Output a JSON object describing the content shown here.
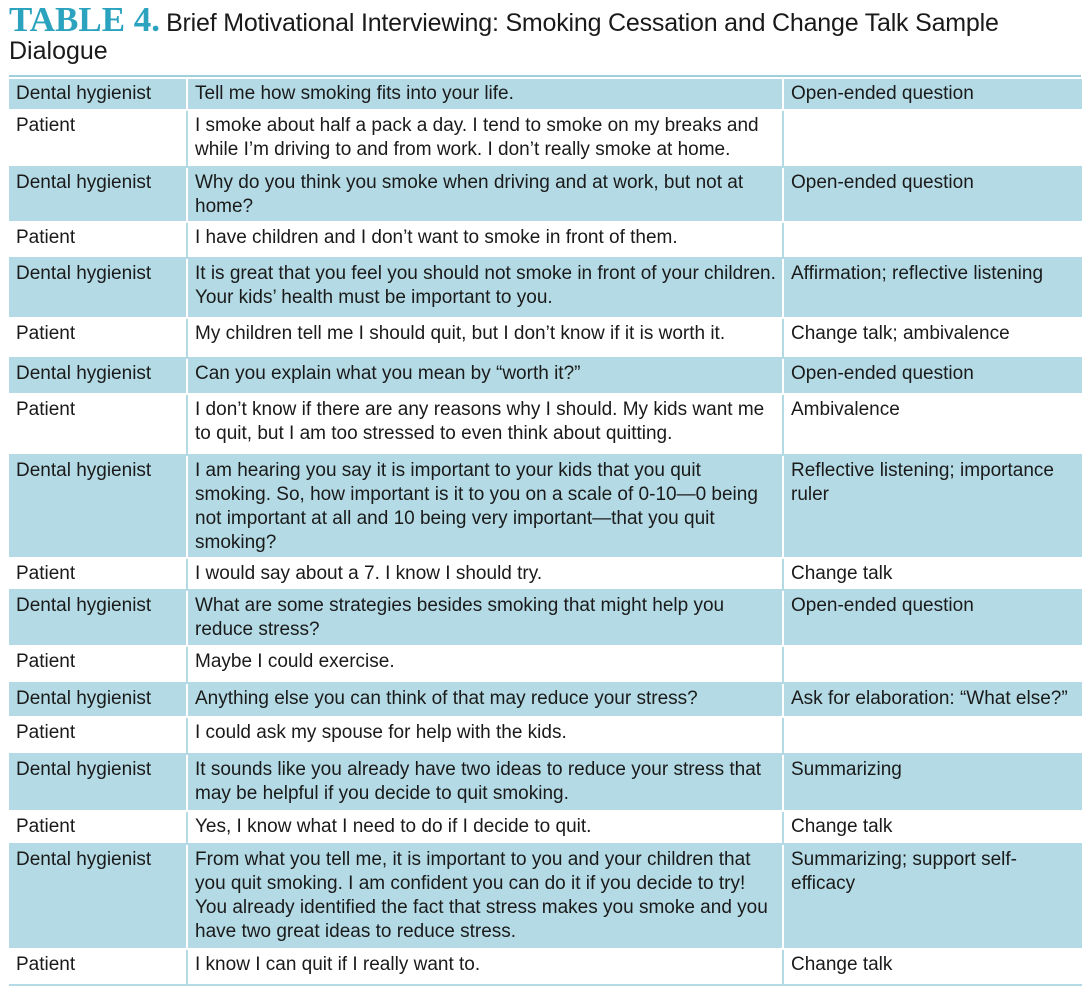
{
  "header": {
    "label": "TABLE 4.",
    "title_line1": "Brief Motivational Interviewing: Smoking Cessation and Change Talk Sample",
    "title_line2": "Dialogue"
  },
  "colors": {
    "label_accent": "#2ba3bf",
    "row_shade": "#b4dbe5"
  },
  "rows": [
    {
      "speaker": "Dental hygienist",
      "dialogue": "Tell me how smoking fits into your life.",
      "technique": "Open-ended question"
    },
    {
      "speaker": "Patient",
      "dialogue": "I smoke about half a pack a day. I tend to smoke on my breaks and while I’m driving to and from work. I don’t really smoke at home.",
      "technique": ""
    },
    {
      "speaker": "Dental hygienist",
      "dialogue": "Why do you think you smoke when driving and at work, but not at home?",
      "technique": "Open-ended question"
    },
    {
      "speaker": "Patient",
      "dialogue": "I have children and I don’t want to smoke in front of them.",
      "technique": ""
    },
    {
      "speaker": "Dental hygienist",
      "dialogue": "It is great that you feel you should not smoke in front of your children. Your kids’ health must be important to you.",
      "technique": "Affirmation; reflective listening"
    },
    {
      "speaker": "Patient",
      "dialogue": "My children tell me I should quit, but I don’t know if it is worth it.",
      "technique": "Change talk; ambivalence"
    },
    {
      "speaker": "Dental hygienist",
      "dialogue": "Can you explain what you mean by “worth it?”",
      "technique": "Open-ended question"
    },
    {
      "speaker": "Patient",
      "dialogue": "I don’t know if there are any reasons why I should. My kids want me to quit, but I am too stressed to even think about quitting.",
      "technique": "Ambivalence"
    },
    {
      "speaker": "Dental hygienist",
      "dialogue": "I am hearing you say it is important to your kids that you quit smoking. So, how important is it to you on a scale of 0-10—0 being not important at all and 10 being very important—that you quit smoking?",
      "technique": "Reflective listening; importance ruler"
    },
    {
      "speaker": "Patient",
      "dialogue": "I would say about a 7. I know I should try.",
      "technique": "Change talk"
    },
    {
      "speaker": "Dental hygienist",
      "dialogue": "What are some strategies besides smoking that might help you reduce stress?",
      "technique": "Open-ended question"
    },
    {
      "speaker": "Patient",
      "dialogue": "Maybe I could exercise.",
      "technique": ""
    },
    {
      "speaker": "Dental hygienist",
      "dialogue": "Anything else you can think of that may reduce your stress?",
      "technique": "Ask for elaboration: “What else?”"
    },
    {
      "speaker": "Patient",
      "dialogue": "I could ask my spouse for help with the kids.",
      "technique": ""
    },
    {
      "speaker": "Dental hygienist",
      "dialogue": "It sounds like you already have two ideas to reduce your stress that may be helpful if you decide to quit smoking.",
      "technique": "Summarizing"
    },
    {
      "speaker": "Patient",
      "dialogue": "Yes, I know what I need to do if I decide to quit.",
      "technique": "Change talk"
    },
    {
      "speaker": "Dental hygienist",
      "dialogue": "From what you tell me, it is important to you and your children that you quit smoking. I am confident you can do it if you decide to try! You already identified the fact that stress makes you smoke and you have two great ideas to reduce stress.",
      "technique": "Summarizing; support self-efficacy"
    },
    {
      "speaker": "Patient",
      "dialogue": "I know I can quit if I really want to.",
      "technique": "Change talk"
    }
  ]
}
